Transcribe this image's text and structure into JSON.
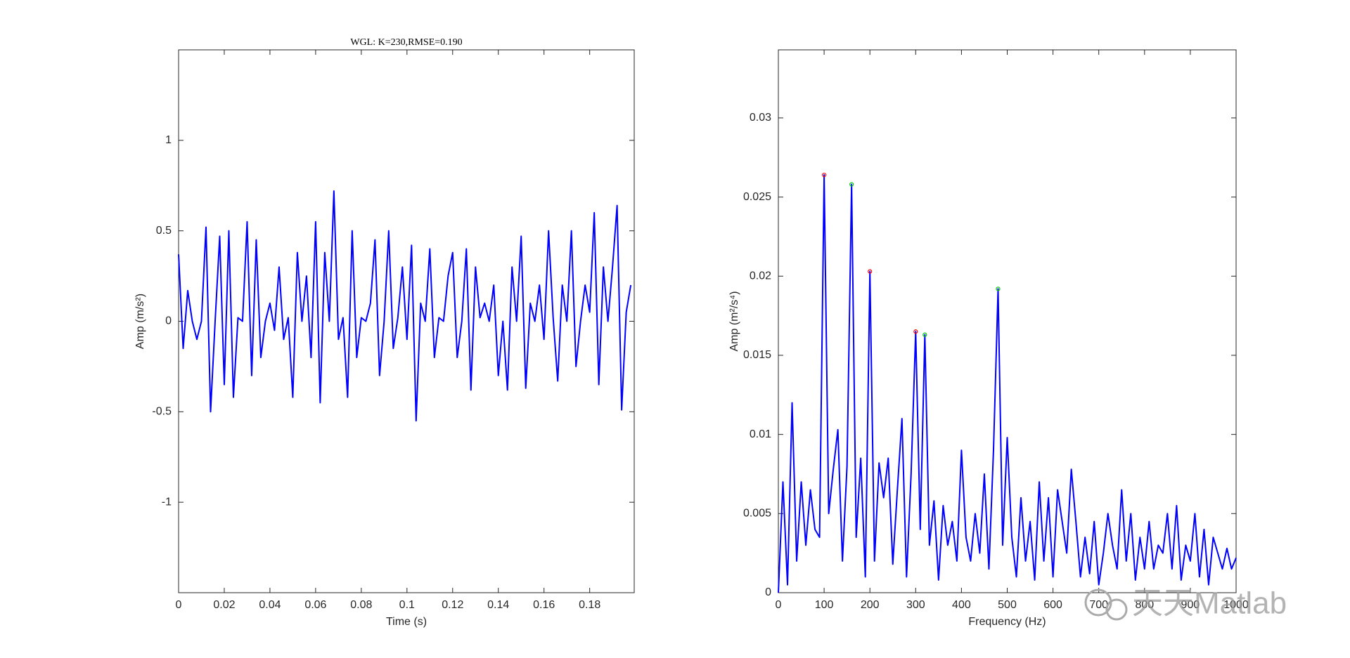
{
  "chart_data": [
    {
      "type": "line",
      "title": "WGL: K=230,RMSE=0.190",
      "xlabel": "Time (s)",
      "ylabel": "Amp (m/s²)",
      "xlim": [
        0,
        0.1995
      ],
      "xticks": [
        0,
        0.02,
        0.04,
        0.06,
        0.08,
        0.1,
        0.12,
        0.14,
        0.16,
        0.18
      ],
      "ylim": [
        -1.5,
        1.5
      ],
      "yticks": [
        -1,
        -0.5,
        0,
        0.5,
        1
      ],
      "x": [
        0,
        0.002,
        0.004,
        0.006,
        0.008,
        0.01,
        0.012,
        0.014,
        0.016,
        0.018,
        0.02,
        0.022,
        0.024,
        0.026,
        0.028,
        0.03,
        0.032,
        0.034,
        0.036,
        0.038,
        0.04,
        0.042,
        0.044,
        0.046,
        0.048,
        0.05,
        0.052,
        0.054,
        0.056,
        0.058,
        0.06,
        0.062,
        0.064,
        0.066,
        0.068,
        0.07,
        0.072,
        0.074,
        0.076,
        0.078,
        0.08,
        0.082,
        0.084,
        0.086,
        0.088,
        0.09,
        0.092,
        0.094,
        0.096,
        0.098,
        0.1,
        0.102,
        0.104,
        0.106,
        0.108,
        0.11,
        0.112,
        0.114,
        0.116,
        0.118,
        0.12,
        0.122,
        0.124,
        0.126,
        0.128,
        0.13,
        0.132,
        0.134,
        0.136,
        0.138,
        0.14,
        0.142,
        0.144,
        0.146,
        0.148,
        0.15,
        0.152,
        0.154,
        0.156,
        0.158,
        0.16,
        0.162,
        0.164,
        0.166,
        0.168,
        0.17,
        0.172,
        0.174,
        0.176,
        0.178,
        0.18,
        0.182,
        0.184,
        0.186,
        0.188,
        0.19,
        0.192,
        0.194,
        0.196,
        0.198
      ],
      "series": [
        {
          "color": "#0000ff",
          "values": [
            0.37,
            -0.15,
            0.17,
            0,
            -0.1,
            0,
            0.52,
            -0.5,
            0,
            0.47,
            -0.35,
            0.5,
            -0.42,
            0.02,
            0,
            0.55,
            -0.3,
            0.45,
            -0.2,
            0,
            0.1,
            -0.05,
            0.3,
            -0.1,
            0.02,
            -0.42,
            0.38,
            0,
            0.25,
            -0.2,
            0.55,
            -0.45,
            0.38,
            0,
            0.72,
            -0.1,
            0.02,
            -0.42,
            0.5,
            -0.2,
            0.02,
            0,
            0.1,
            0.45,
            -0.3,
            0,
            0.5,
            -0.15,
            0.02,
            0.3,
            -0.1,
            0.42,
            -0.55,
            0.1,
            0,
            0.4,
            -0.2,
            0.02,
            0,
            0.25,
            0.38,
            -0.2,
            0,
            0.4,
            -0.38,
            0.3,
            0.02,
            0.1,
            0,
            0.2,
            -0.3,
            0,
            -0.38,
            0.3,
            0,
            0.47,
            -0.37,
            0.1,
            0,
            0.2,
            -0.1,
            0.5,
            0.02,
            -0.33,
            0.2,
            0,
            0.5,
            -0.25,
            0,
            0.2,
            0.05,
            0.6,
            -0.35,
            0.3,
            0,
            0.3,
            0.64,
            -0.49,
            0.05,
            0.2
          ]
        }
      ],
      "markers": []
    },
    {
      "type": "line",
      "xlabel": "Frequency (Hz)",
      "ylabel": "Amp (m²/s⁴)",
      "xlim": [
        0,
        1000
      ],
      "xticks": [
        0,
        100,
        200,
        300,
        400,
        500,
        600,
        700,
        800,
        900,
        1000
      ],
      "ylim": [
        0,
        0.0343
      ],
      "yticks": [
        0,
        0.005,
        0.01,
        0.015,
        0.02,
        0.025,
        0.03
      ],
      "x": [
        0,
        10,
        20,
        30,
        40,
        50,
        60,
        70,
        80,
        90,
        100,
        110,
        120,
        130,
        140,
        150,
        160,
        170,
        180,
        190,
        200,
        210,
        220,
        230,
        240,
        250,
        260,
        270,
        280,
        290,
        300,
        310,
        320,
        330,
        340,
        350,
        360,
        370,
        380,
        390,
        400,
        410,
        420,
        430,
        440,
        450,
        460,
        470,
        480,
        490,
        500,
        510,
        520,
        530,
        540,
        550,
        560,
        570,
        580,
        590,
        600,
        610,
        620,
        630,
        640,
        650,
        660,
        670,
        680,
        690,
        700,
        710,
        720,
        730,
        740,
        750,
        760,
        770,
        780,
        790,
        800,
        810,
        820,
        830,
        840,
        850,
        860,
        870,
        880,
        890,
        900,
        910,
        920,
        930,
        940,
        950,
        960,
        970,
        980,
        990,
        1000
      ],
      "series": [
        {
          "color": "#0000ff",
          "values": [
            0,
            0.007,
            0.0005,
            0.012,
            0.002,
            0.007,
            0.003,
            0.0065,
            0.004,
            0.0035,
            0.0264,
            0.005,
            0.0078,
            0.0103,
            0.002,
            0.008,
            0.0258,
            0.0035,
            0.0085,
            0.001,
            0.0203,
            0.002,
            0.0082,
            0.006,
            0.0085,
            0.0018,
            0.0065,
            0.011,
            0.001,
            0.0075,
            0.0165,
            0.004,
            0.0163,
            0.003,
            0.0058,
            0.0008,
            0.0055,
            0.003,
            0.0045,
            0.002,
            0.009,
            0.0035,
            0.002,
            0.005,
            0.0025,
            0.0075,
            0.0015,
            0.009,
            0.0192,
            0.003,
            0.0098,
            0.0035,
            0.001,
            0.006,
            0.002,
            0.0045,
            0.0008,
            0.007,
            0.002,
            0.006,
            0.001,
            0.0065,
            0.0045,
            0.0025,
            0.0078,
            0.0045,
            0.001,
            0.0035,
            0.0012,
            0.0045,
            0.0005,
            0.0025,
            0.005,
            0.003,
            0.0015,
            0.0065,
            0.002,
            0.005,
            0.0008,
            0.0035,
            0.0015,
            0.0045,
            0.0015,
            0.003,
            0.0025,
            0.005,
            0.0015,
            0.0055,
            0.0008,
            0.003,
            0.002,
            0.005,
            0.001,
            0.004,
            0.0005,
            0.0035,
            0.0025,
            0.0015,
            0.0028,
            0.0015,
            0.0022
          ]
        }
      ],
      "markers": [
        {
          "color": "#ff0000",
          "x": [
            100,
            200,
            300
          ],
          "values": [
            0.0264,
            0.0203,
            0.0165
          ]
        },
        {
          "color": "#00cc00",
          "x": [
            160,
            320,
            480
          ],
          "values": [
            0.0258,
            0.0163,
            0.0192
          ]
        }
      ]
    }
  ],
  "watermark": "天天Matlab"
}
